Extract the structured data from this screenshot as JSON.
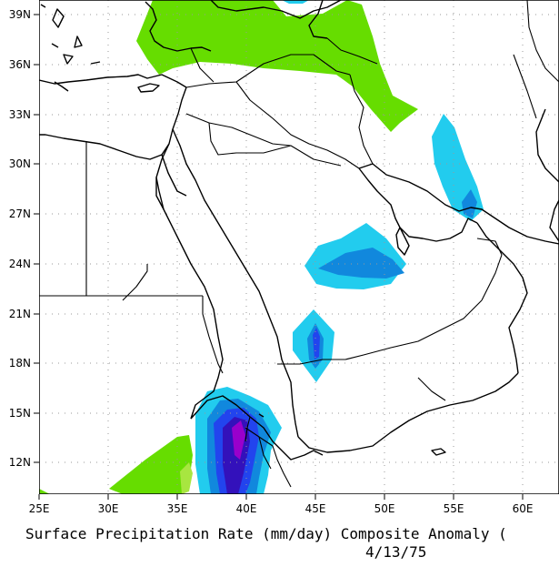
{
  "map": {
    "title": "Surface Precipitation Rate (mm/day) Composite Anomaly (",
    "date": "4/13/75",
    "lat_labels": [
      "39N",
      "36N",
      "33N",
      "30N",
      "27N",
      "24N",
      "21N",
      "18N",
      "15N",
      "12N"
    ],
    "lon_labels": [
      "25E",
      "30E",
      "35E",
      "40E",
      "45E",
      "50E",
      "55E",
      "60E"
    ],
    "colors": {
      "green": "#66dd00",
      "light_green": "#a8e640",
      "cyan": "#22ccee",
      "blue_mid": "#1188dd",
      "blue": "#2244ee",
      "deep_blue": "#3311bb",
      "purple": "#9900cc",
      "coastline": "#000000",
      "grid": "#999999"
    }
  }
}
